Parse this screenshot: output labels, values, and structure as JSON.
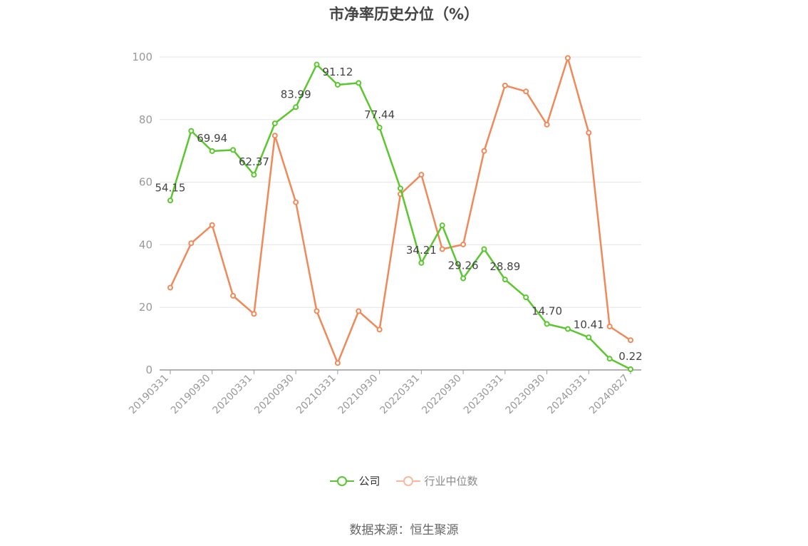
{
  "chart_data": {
    "type": "line",
    "title": "市净率历史分位（%）",
    "ylim": [
      0,
      100
    ],
    "yticks": [
      0,
      20,
      40,
      60,
      80,
      100
    ],
    "x": [
      "20190331",
      "20190630",
      "20190930",
      "20191231",
      "20200331",
      "20200630",
      "20200930",
      "20201231",
      "20210331",
      "20210630",
      "20210930",
      "20211231",
      "20220331",
      "20220630",
      "20220930",
      "20221231",
      "20230331",
      "20230630",
      "20230930",
      "20231231",
      "20240331",
      "20240630",
      "20240827"
    ],
    "x_tick_labels": [
      "20190331",
      "20190930",
      "20200331",
      "20200930",
      "20210331",
      "20210930",
      "20220331",
      "20220930",
      "20230331",
      "20230930",
      "20240331",
      "20240827"
    ],
    "grid": true,
    "legend_position": "bottom",
    "series": [
      {
        "name": "公司",
        "color": "#5bc72f",
        "values": [
          54.15,
          76.4,
          69.94,
          70.3,
          62.37,
          78.8,
          83.99,
          97.6,
          91.12,
          91.7,
          77.44,
          58.0,
          34.21,
          46.2,
          29.26,
          38.6,
          28.89,
          23.2,
          14.7,
          13.1,
          10.41,
          3.6,
          0.22
        ],
        "labels": [
          "54.15",
          "",
          "69.94",
          "",
          "62.37",
          "",
          "83.99",
          "",
          "91.12",
          "",
          "77.44",
          "",
          "34.21",
          "",
          "29.26",
          "",
          "28.89",
          "",
          "14.70",
          "",
          "10.41",
          "",
          "0.22"
        ]
      },
      {
        "name": "行业中位数",
        "color": "#f0895a",
        "values": [
          26.3,
          40.5,
          46.3,
          23.7,
          17.9,
          74.9,
          53.6,
          18.8,
          2.2,
          18.8,
          12.9,
          56.2,
          62.4,
          38.6,
          40.1,
          70.0,
          90.9,
          89.0,
          78.4,
          99.7,
          75.8,
          13.9,
          9.5
        ]
      }
    ]
  },
  "legend": {
    "company_label": "公司",
    "industry_label": "行业中位数",
    "company_color": "#5bc72f",
    "industry_color": "#f7b99d",
    "industry_text_color": "#888888"
  },
  "source": "数据来源：恒生聚源"
}
